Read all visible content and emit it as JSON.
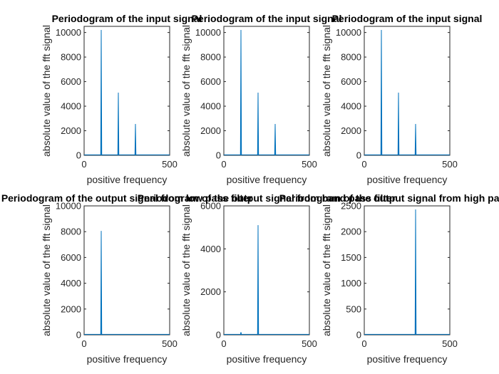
{
  "figure": {
    "background": "#ffffff",
    "line_color": "#0072bd"
  },
  "chart_data": [
    {
      "type": "line",
      "title": "Periodogram of the input signal",
      "xlabel": "positive frequency",
      "ylabel": "absolute value of the fft signal",
      "xlim": [
        0,
        500
      ],
      "ylim": [
        0,
        10500
      ],
      "xticks": [
        0,
        500
      ],
      "yticks": [
        0,
        2000,
        4000,
        6000,
        8000,
        10000
      ],
      "grid": false,
      "series": [
        {
          "peaks": [
            {
              "x": 100,
              "y": 10200
            },
            {
              "x": 200,
              "y": 5100
            },
            {
              "x": 300,
              "y": 2550
            }
          ]
        }
      ]
    },
    {
      "type": "line",
      "title": "Periodogram of the input signal",
      "xlabel": "positive frequency",
      "ylabel": "absolute value of the fft signal",
      "xlim": [
        0,
        500
      ],
      "ylim": [
        0,
        10500
      ],
      "xticks": [
        0,
        500
      ],
      "yticks": [
        0,
        2000,
        4000,
        6000,
        8000,
        10000
      ],
      "grid": false,
      "series": [
        {
          "peaks": [
            {
              "x": 100,
              "y": 10200
            },
            {
              "x": 200,
              "y": 5100
            },
            {
              "x": 300,
              "y": 2550
            }
          ]
        }
      ]
    },
    {
      "type": "line",
      "title": "Periodogram of the input signal",
      "xlabel": "positive frequency",
      "ylabel": "absolute value of the fft signal",
      "xlim": [
        0,
        500
      ],
      "ylim": [
        0,
        10500
      ],
      "xticks": [
        0,
        500
      ],
      "yticks": [
        0,
        2000,
        4000,
        6000,
        8000,
        10000
      ],
      "grid": false,
      "series": [
        {
          "peaks": [
            {
              "x": 100,
              "y": 10200
            },
            {
              "x": 200,
              "y": 5100
            },
            {
              "x": 300,
              "y": 2550
            }
          ]
        }
      ]
    },
    {
      "type": "line",
      "title": "Periodogram of the output signal from low pass filter",
      "xlabel": "positive frequency",
      "ylabel": "absolute value of the fft signal",
      "xlim": [
        0,
        500
      ],
      "ylim": [
        0,
        10000
      ],
      "xticks": [
        0,
        500
      ],
      "yticks": [
        0,
        2000,
        4000,
        6000,
        8000,
        10000
      ],
      "grid": false,
      "series": [
        {
          "peaks": [
            {
              "x": 100,
              "y": 8050
            }
          ]
        }
      ]
    },
    {
      "type": "line",
      "title": "Periodogram of the output signal from band pass filter",
      "xlabel": "positive frequency",
      "ylabel": "absolute value of the fft signal",
      "xlim": [
        0,
        500
      ],
      "ylim": [
        0,
        6000
      ],
      "xticks": [
        0,
        500
      ],
      "yticks": [
        0,
        2000,
        4000,
        6000
      ],
      "grid": false,
      "series": [
        {
          "peaks": [
            {
              "x": 100,
              "y": 120
            },
            {
              "x": 200,
              "y": 5100
            }
          ]
        }
      ]
    },
    {
      "type": "line",
      "title": "Periodogram of the output signal from high pass filter",
      "xlabel": "positive frequency",
      "ylabel": "absolute value of the fft signal",
      "xlim": [
        0,
        500
      ],
      "ylim": [
        0,
        2500
      ],
      "xticks": [
        0,
        500
      ],
      "yticks": [
        0,
        500,
        1000,
        1500,
        2000,
        2500
      ],
      "grid": false,
      "series": [
        {
          "peaks": [
            {
              "x": 300,
              "y": 2430
            }
          ]
        }
      ]
    }
  ]
}
